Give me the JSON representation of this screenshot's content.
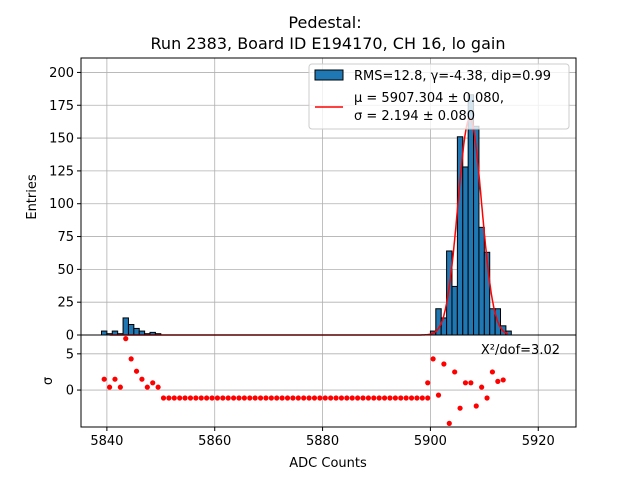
{
  "chart_data": {
    "type": "bar",
    "title": "Pedestal:",
    "subtitle": "Run 2383, Board ID E194170, CH 16, lo gain",
    "xlabel": "ADC Counts",
    "ylabel": "Entries",
    "residual_ylabel": "σ",
    "xlim": [
      5835.2,
      5927
    ],
    "ylim": [
      0,
      211
    ],
    "residual_ylim": [
      -5.1,
      7.6
    ],
    "xticks": [
      5840,
      5860,
      5880,
      5900,
      5920
    ],
    "yticks": [
      0,
      25,
      50,
      75,
      100,
      125,
      150,
      175,
      200
    ],
    "residual_yticks": [
      0,
      5
    ],
    "grid": true,
    "bin_width": 1,
    "bins": [
      5839,
      5840,
      5841,
      5842,
      5843,
      5844,
      5845,
      5846,
      5847,
      5848,
      5849,
      5900,
      5901,
      5902,
      5903,
      5904,
      5905,
      5906,
      5907,
      5908,
      5909,
      5910,
      5911,
      5912,
      5913,
      5914
    ],
    "counts": [
      3,
      1,
      3,
      1,
      13,
      8,
      5,
      3,
      1,
      2,
      1,
      3,
      20,
      13,
      64,
      37,
      151,
      128,
      183,
      159,
      82,
      63,
      20,
      20,
      7,
      3
    ],
    "fit": {
      "mu": 5907.304,
      "sigma": 2.194,
      "amplitude": 165,
      "range": [
        5840.5,
        5914.5
      ]
    },
    "residuals_x_start": 5839.5,
    "residuals": [
      1.5,
      0.4,
      1.5,
      0.4,
      7.1,
      4.3,
      2.6,
      1.5,
      0.4,
      1.0,
      0.4,
      -1.1,
      -1.1,
      -1.1,
      -1.1,
      -1.1,
      -1.1,
      -1.1,
      -1.1,
      -1.1,
      -1.1,
      -1.1,
      -1.1,
      -1.1,
      -1.1,
      -1.1,
      -1.1,
      -1.1,
      -1.1,
      -1.1,
      -1.1,
      -1.1,
      -1.1,
      -1.1,
      -1.1,
      -1.1,
      -1.1,
      -1.1,
      -1.1,
      -1.1,
      -1.1,
      -1.1,
      -1.1,
      -1.1,
      -1.1,
      -1.1,
      -1.1,
      -1.1,
      -1.1,
      -1.1,
      -1.1,
      -1.1,
      -1.1,
      -1.1,
      -1.1,
      -1.1,
      -1.1,
      -1.1,
      -1.1,
      -1.1,
      -1.1,
      1.0,
      4.3,
      -0.7,
      3.6,
      -4.6,
      2.5,
      -2.5,
      1.0,
      1.0,
      -2.2,
      0.4,
      -1.1,
      2.5,
      1.2,
      1.4
    ],
    "legend": {
      "position": "top-right",
      "hist_label": "RMS=12.8, γ=-4.38, dip=0.99",
      "fit_label_1": "μ = 5907.304 ± 0.080,",
      "fit_label_2": "σ = 2.194 ± 0.080"
    },
    "annotation": "X²/dof=3.02",
    "colors": {
      "bar": "#1f77b4",
      "fit": "#ff0000",
      "points": "#ff0000",
      "grid": "#b0b0b0"
    }
  }
}
